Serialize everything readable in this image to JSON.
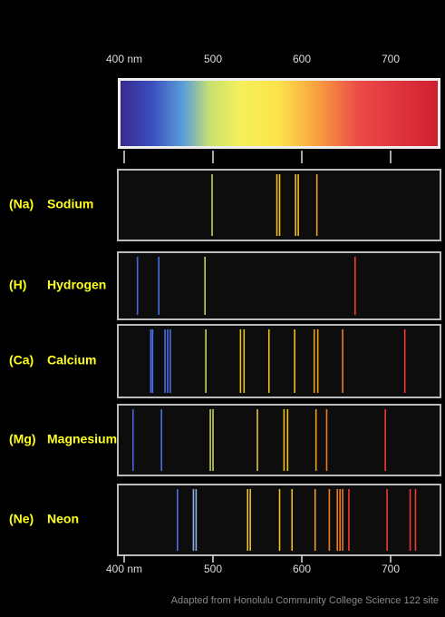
{
  "axis_top": {
    "ticks": [
      {
        "value": 400,
        "label": "400 nm"
      },
      500,
      600,
      700
    ]
  },
  "axis_bottom": {
    "ticks": [
      {
        "value": 400,
        "label": "400 nm"
      },
      500,
      600,
      700
    ]
  },
  "spectra": [
    {
      "symbol": "(Na)",
      "name": "Sodium",
      "lines": [
        499,
        572,
        575,
        593,
        596,
        617
      ]
    },
    {
      "symbol": "(H)",
      "name": "Hydrogen",
      "lines": [
        415,
        439,
        491,
        660
      ]
    },
    {
      "symbol": "(Ca)",
      "name": "Calcium",
      "lines": [
        430,
        432,
        446,
        449,
        452,
        492,
        531,
        535,
        563,
        592,
        614,
        618,
        646,
        716
      ]
    },
    {
      "symbol": "(Mg)",
      "name": "Magnesium",
      "lines": [
        410,
        442,
        497,
        500,
        550,
        580,
        584,
        616,
        628,
        694
      ]
    },
    {
      "symbol": "(Ne)",
      "name": "Neon",
      "lines": [
        460,
        478,
        481,
        539,
        542,
        575,
        589,
        615,
        631,
        640,
        643,
        646,
        653,
        696,
        722,
        728
      ]
    }
  ],
  "credit": "Adapted from Honolulu Community College Science 122 site"
}
